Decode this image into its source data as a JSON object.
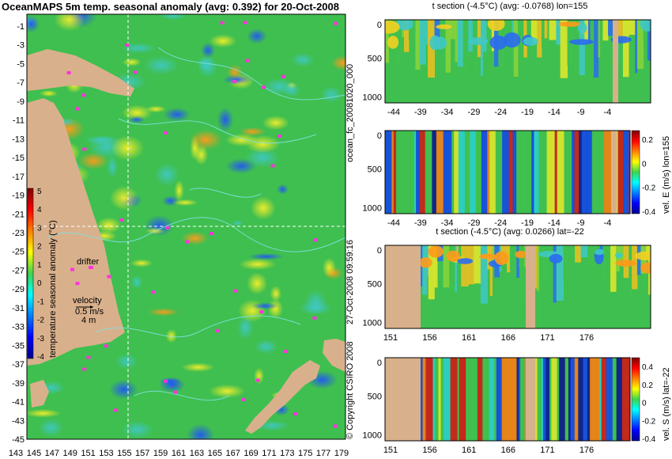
{
  "header": {
    "title": "OceanMAPS 5m temp. seasonal anomaly (avg: 0.392) for 20-Oct-2008"
  },
  "side_text": {
    "run_id": "ocean_fc_20081020_000",
    "timestamp": "27-Oct-2008 09:59:16",
    "copyright": "© Copyright CSIRO 2008"
  },
  "colors": {
    "land": "#d9b08c",
    "water_base": "#3fbf4f",
    "contour": "#7ee0e0",
    "drifter": "#ff33dd",
    "gridline": "#ffffff"
  },
  "map": {
    "lat_ticks": [
      "-1",
      "-3",
      "-5",
      "-7",
      "-9",
      "-11",
      "-13",
      "-15",
      "-17",
      "-19",
      "-21",
      "-23",
      "-25",
      "-27",
      "-29",
      "-31",
      "-33",
      "-35",
      "-37",
      "-39",
      "-41",
      "-43",
      "-45"
    ],
    "lon_ticks": [
      "143",
      "145",
      "147",
      "149",
      "151",
      "153",
      "155",
      "157",
      "159",
      "161",
      "163",
      "165",
      "167",
      "169",
      "171",
      "173",
      "175",
      "177",
      "179"
    ],
    "colorbar": {
      "ticks": [
        "5",
        "4",
        "3",
        "2",
        "1",
        "0",
        "-1",
        "-2",
        "-3",
        "-4"
      ],
      "label": "temperature seasonal anomaly (°C)",
      "range": [
        -4,
        5
      ]
    },
    "drifter_label": "drifter",
    "velocity_label": "velocity",
    "velocity_value1": "0.5 m/s",
    "velocity_value2": "4 m",
    "section_lon": 155,
    "section_lat": -22,
    "lat_range": [
      -45,
      0
    ],
    "lon_range": [
      142,
      180
    ]
  },
  "chart_data": [
    {
      "type": "heatmap",
      "title": "OceanMAPS 5m temp. seasonal anomaly (avg: 0.392) for 20-Oct-2008",
      "xlabel": "",
      "ylabel": "",
      "x_range": [
        142,
        180
      ],
      "y_range": [
        -45,
        0
      ],
      "colorbar_range": [
        -4,
        5
      ],
      "average": 0.392
    },
    {
      "type": "heatmap",
      "title": "t section (-4.5°C) (avg: -0.0768) lon=155",
      "x_ticks": [
        "-44",
        "-39",
        "-34",
        "-29",
        "-24",
        "-19",
        "-14",
        "-9",
        "-4"
      ],
      "y_ticks": [
        "0",
        "500",
        "1000"
      ],
      "y_range": [
        0,
        1100
      ],
      "average": -0.0768
    },
    {
      "type": "heatmap",
      "title": "",
      "x_ticks": [
        "-44",
        "-39",
        "-34",
        "-29",
        "-24",
        "-19",
        "-14",
        "-9",
        "-4"
      ],
      "y_ticks": [
        "0",
        "500",
        "1000"
      ],
      "y_range": [
        0,
        1100
      ],
      "colorbar_label": "vel. E (m/s) lon=155",
      "colorbar_ticks": [
        "0.2",
        "0",
        "-0.2",
        "-0.4"
      ],
      "colorbar_range": [
        -0.4,
        0.4
      ]
    },
    {
      "type": "heatmap",
      "title": "t section (-4.5°C) (avg: 0.0266) lat=-22",
      "x_ticks": [
        "151",
        "156",
        "161",
        "166",
        "171",
        "176"
      ],
      "y_ticks": [
        "0",
        "500",
        "1000"
      ],
      "y_range": [
        0,
        1100
      ],
      "average": 0.0266
    },
    {
      "type": "heatmap",
      "title": "",
      "x_ticks": [
        "151",
        "156",
        "161",
        "166",
        "171",
        "176"
      ],
      "y_ticks": [
        "0",
        "500",
        "1000"
      ],
      "y_range": [
        0,
        1100
      ],
      "colorbar_label": "vel. S (m/s) lat=-22",
      "colorbar_ticks": [
        "0.4",
        "0.2",
        "0",
        "-0.2",
        "-0.4"
      ],
      "colorbar_range": [
        -0.4,
        0.4
      ]
    }
  ],
  "sections": [
    {
      "title": "t section (-4.5°C) (avg: -0.0768) lon=155",
      "x_ticks": [
        "-44",
        "-39",
        "-34",
        "-29",
        "-24",
        "-19",
        "-14",
        "-9",
        "-4"
      ],
      "y_ticks": [
        "0",
        "500",
        "1000"
      ]
    },
    {
      "title": "",
      "x_ticks": [
        "-44",
        "-39",
        "-34",
        "-29",
        "-24",
        "-19",
        "-14",
        "-9",
        "-4"
      ],
      "y_ticks": [
        "0",
        "500",
        "1000"
      ],
      "cb_ticks": [
        "0.2",
        "0",
        "-0.2",
        "-0.4"
      ],
      "cb_label": "vel. E (m/s) lon=155"
    },
    {
      "title": "t section (-4.5°C) (avg: 0.0266) lat=-22",
      "x_ticks": [
        "151",
        "156",
        "161",
        "166",
        "171",
        "176"
      ],
      "y_ticks": [
        "0",
        "500",
        "1000"
      ]
    },
    {
      "title": "",
      "x_ticks": [
        "151",
        "156",
        "161",
        "166",
        "171",
        "176"
      ],
      "y_ticks": [
        "0",
        "500",
        "1000"
      ],
      "cb_ticks": [
        "0.4",
        "0.2",
        "0",
        "-0.2",
        "-0.4"
      ],
      "cb_label": "vel. S (m/s) lat=-22"
    }
  ]
}
